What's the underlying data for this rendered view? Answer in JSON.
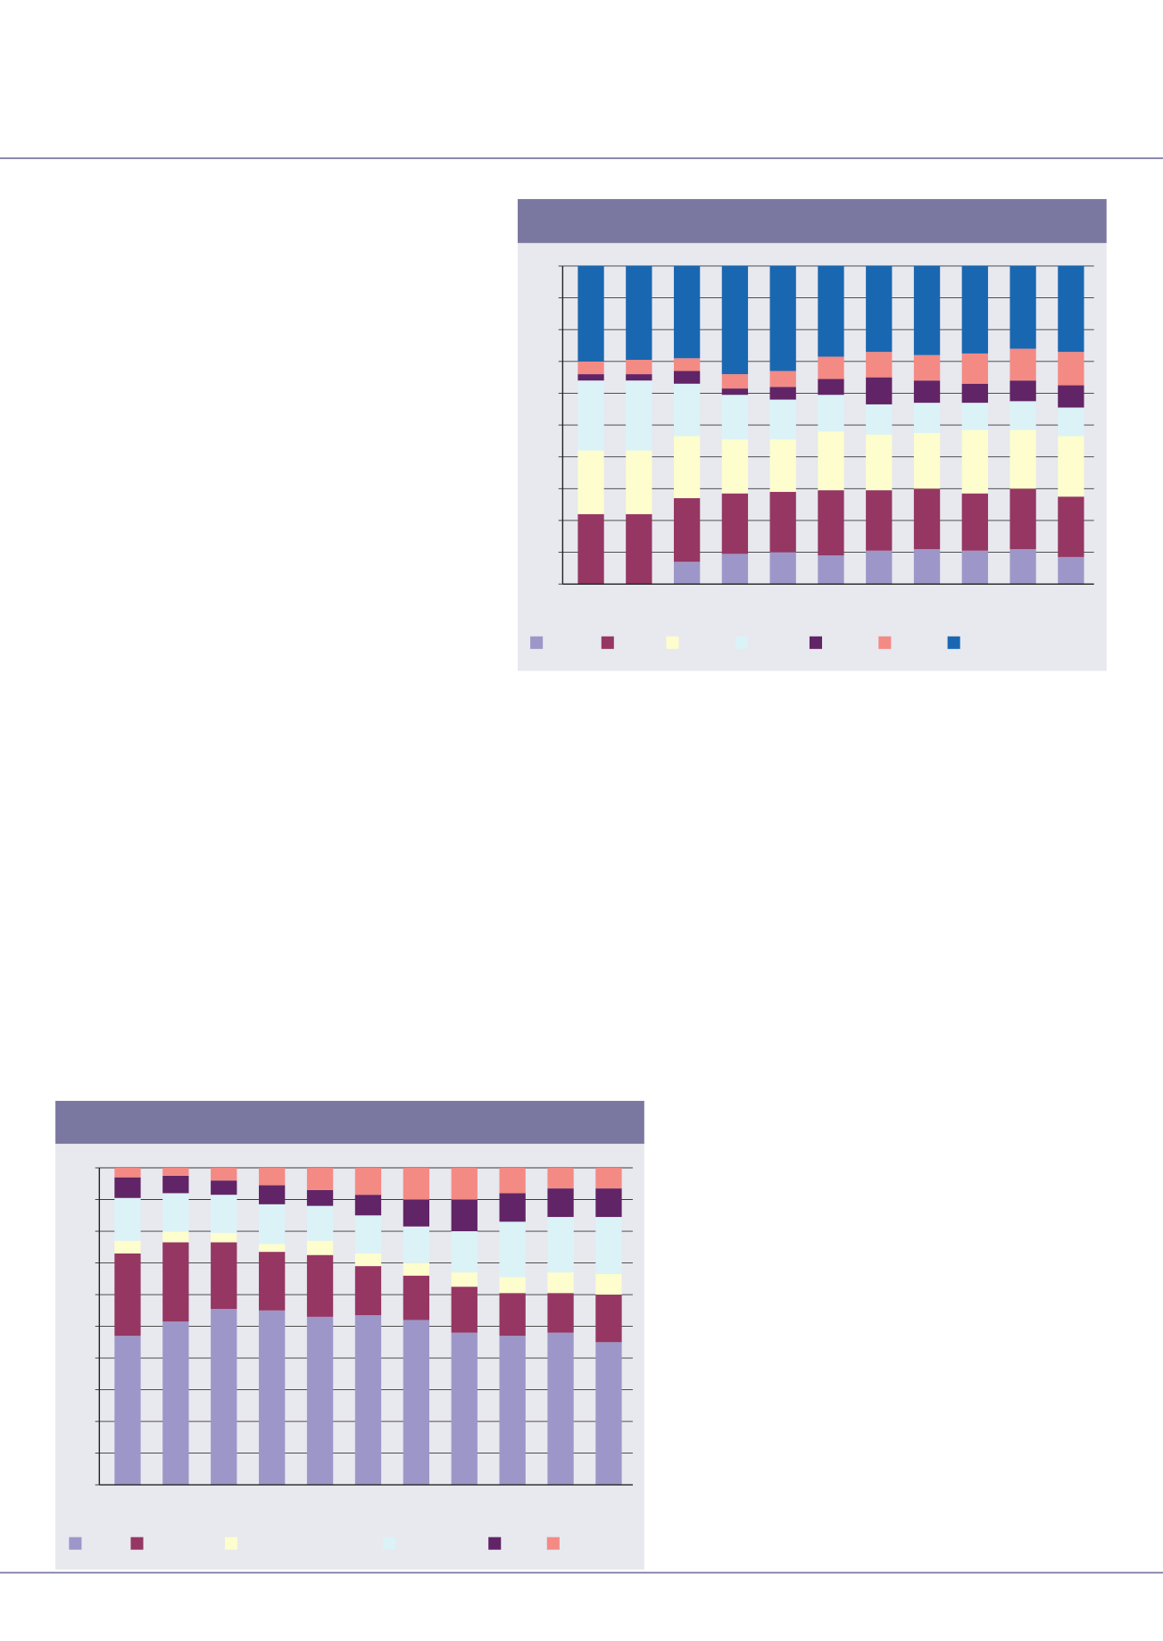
{
  "chart_data": [
    {
      "type": "bar",
      "stacked": true,
      "grid": true,
      "categories": [
        null,
        null,
        null,
        null,
        null,
        null,
        null,
        null,
        null,
        null,
        null
      ],
      "ylim": [
        0,
        100
      ],
      "yticks": [
        0,
        10,
        20,
        30,
        40,
        50,
        60,
        70,
        80,
        90,
        100
      ],
      "series": [
        {
          "color": "#9d97c9",
          "values": [
            0,
            0,
            7,
            9.5,
            10,
            9,
            10.5,
            11,
            10.5,
            11,
            8.5
          ]
        },
        {
          "color": "#953762",
          "values": [
            22,
            22,
            20,
            19,
            19,
            20.5,
            19,
            19,
            18,
            19,
            19
          ]
        },
        {
          "color": "#fdfdce",
          "values": [
            20,
            20,
            19.5,
            17,
            16.5,
            18.5,
            17.5,
            17.5,
            20,
            18.5,
            19
          ]
        },
        {
          "color": "#dbf3f6",
          "values": [
            22,
            22,
            16.5,
            14,
            12.5,
            11.5,
            9.5,
            9.5,
            8.5,
            9,
            9
          ]
        },
        {
          "color": "#612466",
          "values": [
            2,
            2,
            4,
            2,
            4,
            5,
            8.5,
            7,
            6,
            6.5,
            7
          ]
        },
        {
          "color": "#f48a84",
          "values": [
            4,
            4.5,
            4,
            4.5,
            5,
            7,
            8,
            8,
            9.5,
            10,
            10.5
          ]
        },
        {
          "color": "#1a67b1",
          "values": [
            30,
            29.5,
            29,
            34,
            33,
            28.5,
            27,
            28,
            27.5,
            26,
            27
          ]
        }
      ]
    },
    {
      "type": "bar",
      "stacked": true,
      "grid": true,
      "categories": [
        null,
        null,
        null,
        null,
        null,
        null,
        null,
        null,
        null,
        null,
        null
      ],
      "ylim": [
        0,
        100
      ],
      "yticks": [
        0,
        10,
        20,
        30,
        40,
        50,
        60,
        70,
        80,
        90,
        100
      ],
      "series": [
        {
          "color": "#9d97c9",
          "values": [
            47,
            51.5,
            55.5,
            55,
            53,
            53.5,
            52,
            48,
            47,
            48,
            45
          ]
        },
        {
          "color": "#953762",
          "values": [
            26,
            25,
            21,
            18.5,
            19.5,
            15.5,
            14,
            14.5,
            13.5,
            12.5,
            15
          ]
        },
        {
          "color": "#fdfdce",
          "values": [
            4,
            3.5,
            3,
            2.5,
            4.5,
            4,
            4,
            4.5,
            5,
            6.5,
            6.5
          ]
        },
        {
          "color": "#dbf3f6",
          "values": [
            13.5,
            12,
            12,
            12.5,
            11,
            12,
            11.5,
            13,
            17.5,
            17.5,
            18
          ]
        },
        {
          "color": "#612466",
          "values": [
            6.5,
            5.5,
            4.5,
            6,
            5,
            6.5,
            8.5,
            10,
            9,
            9,
            9
          ]
        },
        {
          "color": "#f48a84",
          "values": [
            3,
            2.5,
            4,
            5.5,
            7,
            8.5,
            10,
            10,
            8,
            6.5,
            6.5
          ]
        }
      ]
    }
  ]
}
